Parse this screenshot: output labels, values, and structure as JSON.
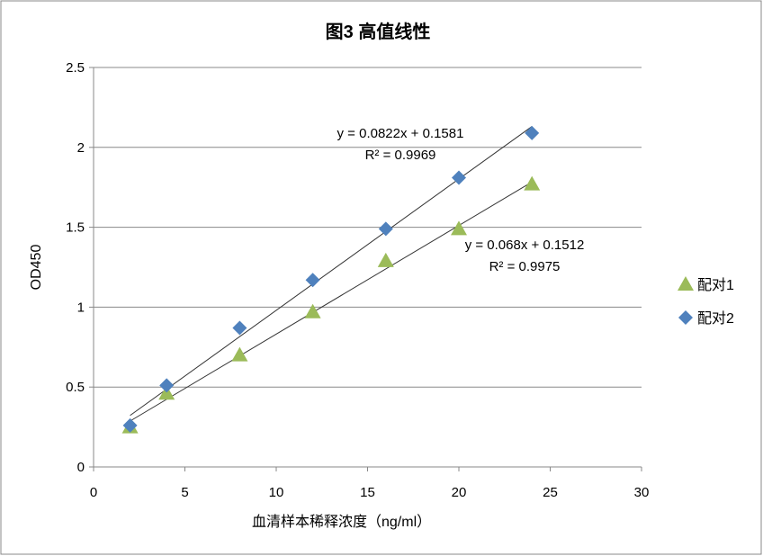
{
  "chart_data": {
    "type": "scatter",
    "title": "图3  高值线性",
    "xlabel": "血清样本稀释浓度（ng/ml）",
    "ylabel": "OD450",
    "xlim": [
      0,
      30
    ],
    "ylim": [
      0,
      2.5
    ],
    "xticks": [
      "0",
      "5",
      "10",
      "15",
      "20",
      "25",
      "30"
    ],
    "yticks": [
      "0",
      "0.5",
      "1",
      "1.5",
      "2",
      "2.5"
    ],
    "grid": "horizontal",
    "legend_position": "right",
    "series": [
      {
        "name": "配对1",
        "marker": "triangle",
        "color": "#9BBB59",
        "x": [
          2,
          4,
          8,
          12,
          16,
          20,
          24
        ],
        "y": [
          0.25,
          0.46,
          0.7,
          0.97,
          1.29,
          1.49,
          1.77
        ],
        "trendline": {
          "slope": 0.068,
          "intercept": 0.1512,
          "equation": "y = 0.068x + 0.1512",
          "r2": "R² = 0.9975"
        }
      },
      {
        "name": "配对2",
        "marker": "diamond",
        "color": "#4F81BD",
        "x": [
          2,
          4,
          8,
          12,
          16,
          20,
          24
        ],
        "y": [
          0.26,
          0.51,
          0.87,
          1.17,
          1.49,
          1.81,
          2.09
        ],
        "trendline": {
          "slope": 0.0822,
          "intercept": 0.1581,
          "equation": "y = 0.0822x + 0.1581",
          "r2": "R² = 0.9969"
        }
      }
    ]
  }
}
